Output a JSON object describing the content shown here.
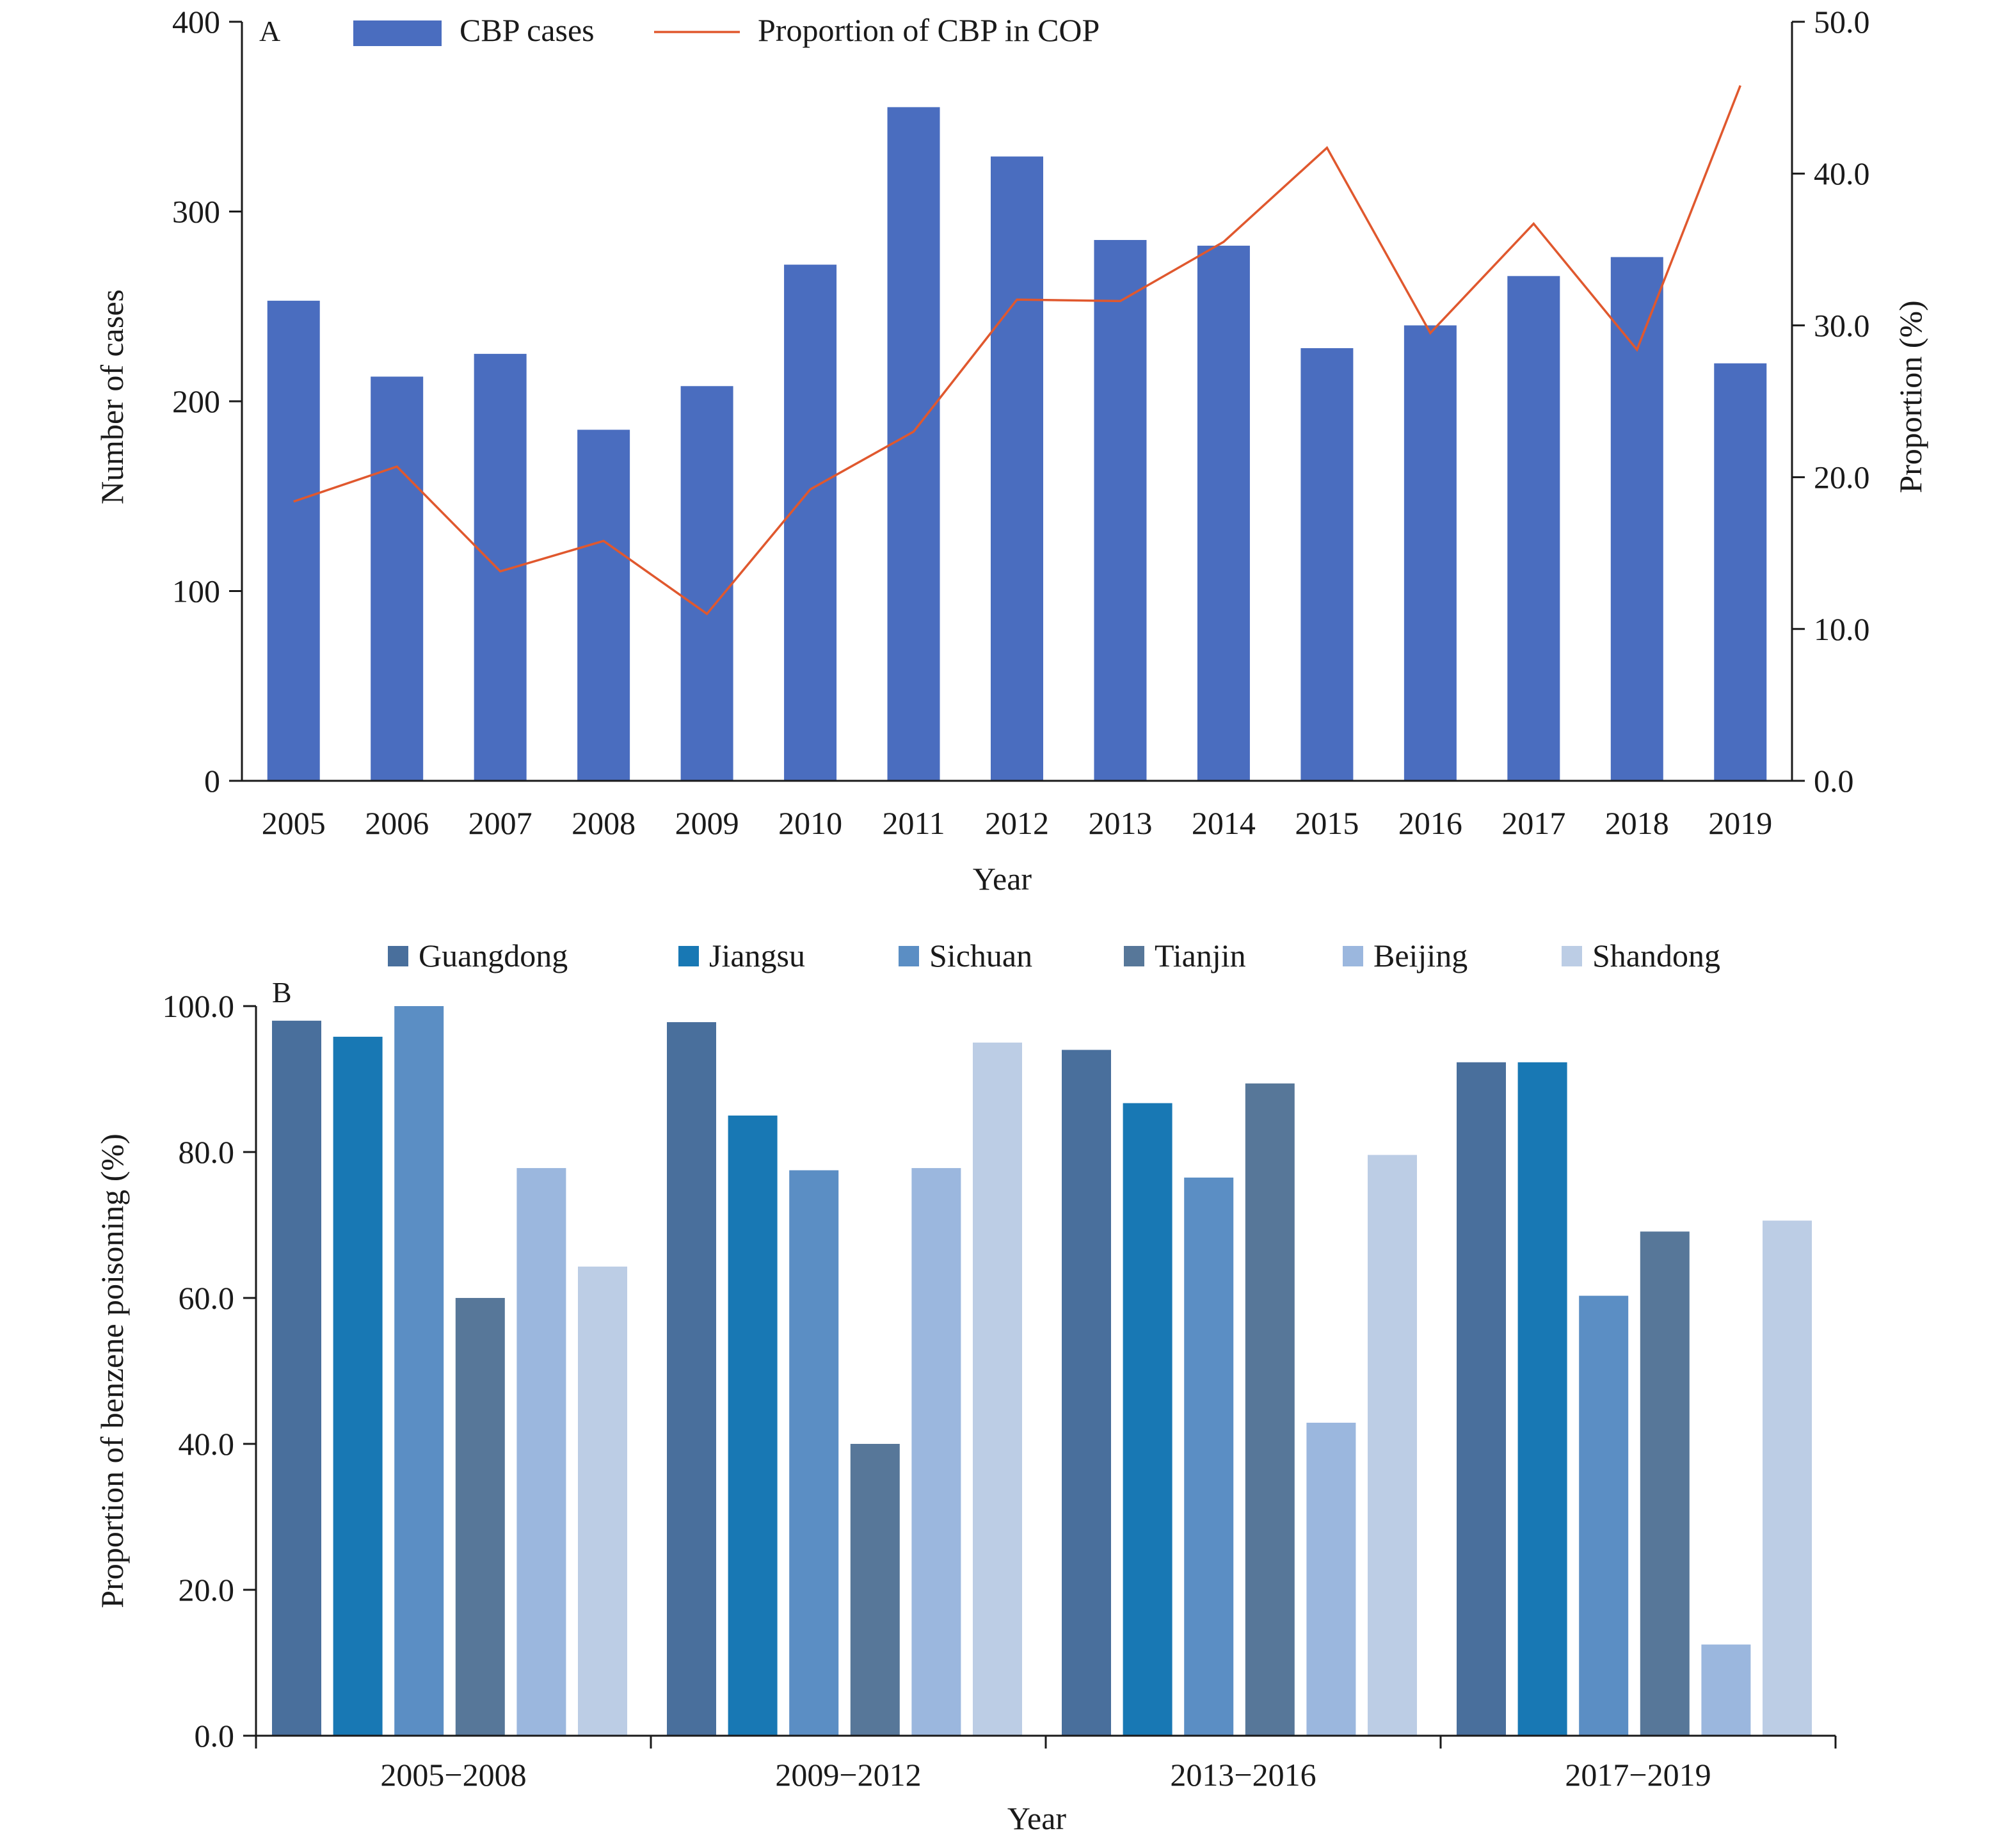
{
  "chart_data": [
    {
      "panel_label": "A",
      "type": "bar",
      "xlabel": "Year",
      "ylabel": "Number of cases",
      "y2label": "Proportion (%)",
      "ylim": [
        0,
        400
      ],
      "y2lim": [
        0,
        50
      ],
      "yticks": [
        "0",
        "100",
        "200",
        "300",
        "400"
      ],
      "y2ticks": [
        "0.0",
        "10.0",
        "20.0",
        "30.0",
        "40.0",
        "50.0"
      ],
      "categories": [
        "2005",
        "2006",
        "2007",
        "2008",
        "2009",
        "2010",
        "2011",
        "2012",
        "2013",
        "2014",
        "2015",
        "2016",
        "2017",
        "2018",
        "2019"
      ],
      "legend_position": "top",
      "series": [
        {
          "name": "CBP cases",
          "type": "bar",
          "axis": "left",
          "color": "#4a6dbf",
          "values": [
            253,
            213,
            225,
            185,
            208,
            272,
            355,
            329,
            285,
            282,
            228,
            240,
            266,
            276,
            220
          ]
        },
        {
          "name": "Proportion of CBP in COP",
          "type": "line",
          "axis": "right",
          "color": "#e0582e",
          "values": [
            18.4,
            20.7,
            13.8,
            15.8,
            11.0,
            19.2,
            23.0,
            31.7,
            31.6,
            35.5,
            41.7,
            29.5,
            36.7,
            28.4,
            45.8
          ]
        }
      ]
    },
    {
      "panel_label": "B",
      "type": "bar",
      "xlabel": "Year",
      "ylabel": "Proportion of benzene poisoning (%)",
      "ylim": [
        0,
        100
      ],
      "yticks": [
        "0.0",
        "20.0",
        "40.0",
        "60.0",
        "80.0",
        "100.0"
      ],
      "categories": [
        "2005−2008",
        "2009−2012",
        "2013−2016",
        "2017−2019"
      ],
      "legend_position": "top",
      "series": [
        {
          "name": "Guangdong",
          "color": "#496f9c",
          "values": [
            98.0,
            97.8,
            94.0,
            92.3
          ]
        },
        {
          "name": "Jiangsu",
          "color": "#1878b4",
          "values": [
            95.8,
            85.0,
            86.7,
            92.3
          ]
        },
        {
          "name": "Sichuan",
          "color": "#5b8ec4",
          "values": [
            100.0,
            77.5,
            76.5,
            60.3
          ]
        },
        {
          "name": "Tianjin",
          "color": "#577799",
          "values": [
            60.0,
            40.0,
            89.4,
            69.1
          ]
        },
        {
          "name": "Beijing",
          "color": "#9bb7de",
          "values": [
            77.8,
            77.8,
            42.9,
            12.5
          ]
        },
        {
          "name": "Shandong",
          "color": "#bccde5",
          "values": [
            64.3,
            95.0,
            79.6,
            70.6
          ]
        }
      ]
    }
  ]
}
